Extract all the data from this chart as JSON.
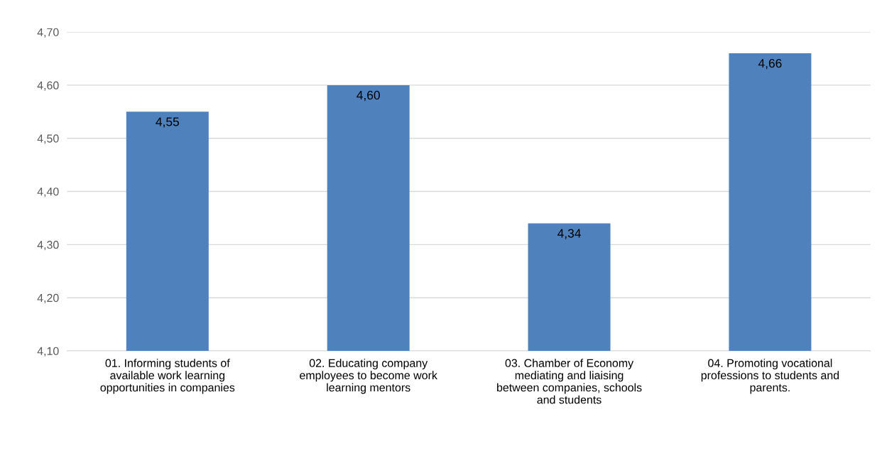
{
  "chart_data": {
    "type": "bar",
    "categories": [
      "01. Informing students of\navailable work learning\nopportunities in companies",
      "02. Educating company\nemployees to become work\nlearning mentors",
      "03. Chamber of Economy\nmediating and liaising\nbetween companies, schools\nand students",
      "04. Promoting vocational\nprofessions to students and\nparents."
    ],
    "values": [
      4.55,
      4.6,
      4.34,
      4.66
    ],
    "value_labels": [
      "4,55",
      "4,60",
      "4,34",
      "4,66"
    ],
    "color": "#4f81bd",
    "ylim": [
      4.1,
      4.7
    ],
    "yticks": [
      {
        "value": 4.1,
        "label": "4,10"
      },
      {
        "value": 4.2,
        "label": "4,20"
      },
      {
        "value": 4.3,
        "label": "4,30"
      },
      {
        "value": 4.4,
        "label": "4,40"
      },
      {
        "value": 4.5,
        "label": "4,50"
      },
      {
        "value": 4.6,
        "label": "4,60"
      },
      {
        "value": 4.7,
        "label": "4,70"
      }
    ],
    "grid": "y"
  }
}
